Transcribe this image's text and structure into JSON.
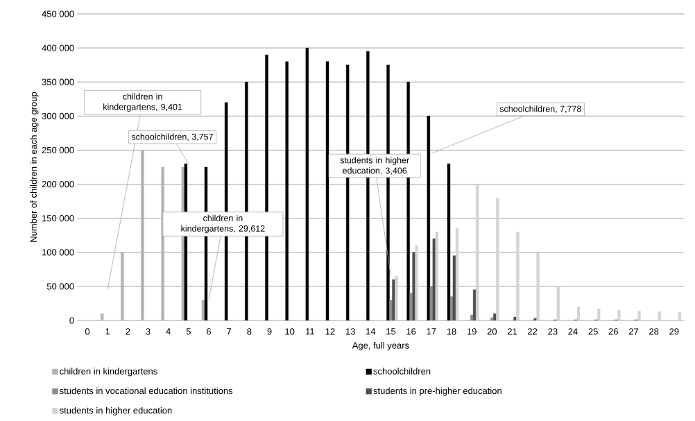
{
  "chart_data": {
    "type": "bar",
    "xlabel": "Age, full years",
    "ylabel": "Number of children in each age group",
    "categories": [
      "0",
      "1",
      "2",
      "3",
      "4",
      "5",
      "6",
      "7",
      "8",
      "9",
      "10",
      "11",
      "12",
      "13",
      "14",
      "15",
      "16",
      "17",
      "18",
      "19",
      "20",
      "21",
      "22",
      "23",
      "24",
      "25",
      "26",
      "27",
      "28",
      "29"
    ],
    "series": [
      {
        "name": "children in kindergartens",
        "color": "#b3b3b3",
        "values": [
          null,
          10000,
          100000,
          250000,
          225000,
          225000,
          30000,
          null,
          null,
          null,
          null,
          null,
          null,
          null,
          null,
          null,
          null,
          null,
          null,
          null,
          null,
          null,
          null,
          null,
          null,
          null,
          null,
          null,
          null,
          null
        ]
      },
      {
        "name": "schoolchildren",
        "color": "#000000",
        "values": [
          null,
          null,
          null,
          null,
          null,
          230000,
          225000,
          320000,
          350000,
          390000,
          380000,
          400000,
          380000,
          375000,
          395000,
          375000,
          350000,
          300000,
          230000,
          null,
          null,
          null,
          null,
          null,
          null,
          null,
          null,
          null,
          null,
          null
        ]
      },
      {
        "name": "students in vocational education institutions",
        "color": "#8c8c8c",
        "values": [
          null,
          null,
          null,
          null,
          null,
          null,
          null,
          null,
          null,
          null,
          null,
          null,
          null,
          null,
          null,
          30000,
          40000,
          50000,
          35000,
          8000,
          4000,
          null,
          null,
          null,
          null,
          null,
          null,
          null,
          null,
          null
        ]
      },
      {
        "name": "students in pre-higher education",
        "color": "#4d4d4d",
        "values": [
          null,
          null,
          null,
          null,
          null,
          null,
          null,
          null,
          null,
          null,
          null,
          null,
          null,
          null,
          null,
          60000,
          100000,
          120000,
          95000,
          45000,
          10000,
          5000,
          3000,
          1000,
          1000,
          1000,
          1000,
          1000,
          null,
          null
        ]
      },
      {
        "name": "students in higher education",
        "color": "#d4d4d4",
        "values": [
          null,
          null,
          null,
          null,
          null,
          null,
          null,
          null,
          null,
          null,
          null,
          null,
          null,
          null,
          null,
          65000,
          110000,
          130000,
          135000,
          200000,
          180000,
          130000,
          100000,
          50000,
          20000,
          17000,
          15000,
          14000,
          13000,
          12000
        ]
      }
    ],
    "ylim": [
      0,
      450000
    ],
    "yticks": [
      {
        "value": 0,
        "label": "0"
      },
      {
        "value": 50000,
        "label": "50 000"
      },
      {
        "value": 100000,
        "label": "100 000"
      },
      {
        "value": 150000,
        "label": "150 000"
      },
      {
        "value": 200000,
        "label": "200 000"
      },
      {
        "value": 250000,
        "label": "250 000"
      },
      {
        "value": 300000,
        "label": "300 000"
      },
      {
        "value": 350000,
        "label": "350 000"
      },
      {
        "value": 400000,
        "label": "400 000"
      },
      {
        "value": 450000,
        "label": "450 000"
      }
    ],
    "grid": "y",
    "legend": "bottom",
    "annotations": [
      "children in kindergartens, 9,401",
      {
        "text": "schoolchildren, 3,757",
        "x": "5",
        "y": 230000
      },
      {
        "text": "children in kindergartens, 29,612",
        "x": "6",
        "y": 30000
      },
      {
        "text": "students in higher education, 3,406",
        "x": "15",
        "y": 65000
      },
      {
        "text": "schoolchildren, 7,778",
        "x": "17",
        "y": 245000
      }
    ]
  }
}
